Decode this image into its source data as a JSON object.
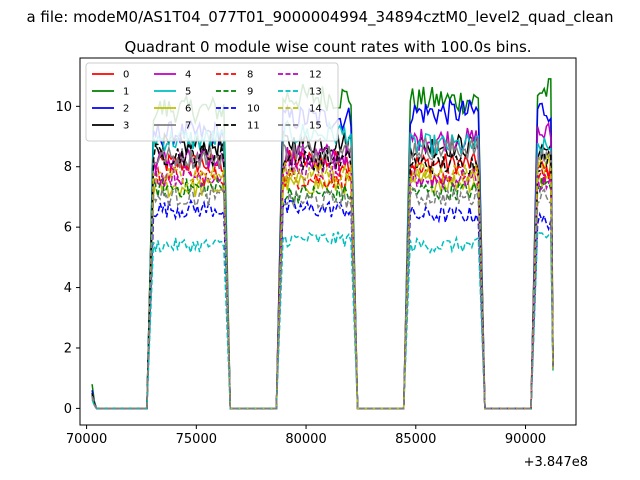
{
  "chart_data": {
    "type": "line",
    "suptitle": "a file: modeM0/AS1T04_077T01_9000004994_34894cztM0_level2_quad_clean",
    "title": "Quadrant 0 module wise count rates with 100.0s bins.",
    "xlabel": "",
    "ylabel": "",
    "x_offset_label": "+3.847e8",
    "xlim": [
      69700,
      92300
    ],
    "ylim": [
      -0.55,
      11.6
    ],
    "xticks": [
      70000,
      75000,
      80000,
      85000,
      90000
    ],
    "xtick_labels": [
      "70000",
      "75000",
      "80000",
      "85000",
      "90000"
    ],
    "yticks": [
      0,
      2,
      4,
      6,
      8,
      10
    ],
    "ytick_labels": [
      "0",
      "2",
      "4",
      "6",
      "8",
      "10"
    ],
    "legend_position": "top-left",
    "observation_windows": [
      {
        "rise_start": 72750,
        "plateau_start": 73050,
        "plateau_end": 76250,
        "fall_end": 76550
      },
      {
        "rise_start": 78650,
        "plateau_start": 78950,
        "plateau_end": 82050,
        "fall_end": 82350
      },
      {
        "rise_start": 84450,
        "plateau_start": 84750,
        "plateau_end": 87850,
        "fall_end": 88150
      },
      {
        "rise_start": 90250,
        "plateau_start": 90550,
        "plateau_end": 91150,
        "fall_end": 91250
      }
    ],
    "series": [
      {
        "name": "0",
        "color": "#ff0000",
        "dash": "solid",
        "levels": [
          8.1,
          8.2,
          8.1,
          7.9
        ],
        "start": 0.5,
        "end": 1.4
      },
      {
        "name": "1",
        "color": "#008000",
        "dash": "solid",
        "levels": [
          9.9,
          10.3,
          10.2,
          10.5
        ],
        "start": 0.8,
        "end": 1.7
      },
      {
        "name": "2",
        "color": "#0000ff",
        "dash": "solid",
        "levels": [
          9.1,
          9.6,
          9.8,
          9.9
        ],
        "start": 0.6,
        "end": 1.6
      },
      {
        "name": "3",
        "color": "#000000",
        "dash": "solid",
        "levels": [
          8.7,
          8.8,
          8.7,
          8.6
        ],
        "start": 0.5,
        "end": 1.5
      },
      {
        "name": "4",
        "color": "#bf00bf",
        "dash": "solid",
        "levels": [
          8.2,
          8.4,
          8.9,
          9.1
        ],
        "start": 0.5,
        "end": 1.5
      },
      {
        "name": "5",
        "color": "#00bfbf",
        "dash": "solid",
        "levels": [
          8.9,
          9.1,
          8.7,
          8.6
        ],
        "start": 0.5,
        "end": 1.5
      },
      {
        "name": "6",
        "color": "#bfbf00",
        "dash": "solid",
        "levels": [
          7.3,
          7.4,
          7.5,
          7.6
        ],
        "start": 0.4,
        "end": 1.3
      },
      {
        "name": "7",
        "color": "#808080",
        "dash": "solid",
        "levels": [
          8.3,
          8.5,
          8.6,
          8.4
        ],
        "start": 0.5,
        "end": 1.4
      },
      {
        "name": "8",
        "color": "#ff0000",
        "dash": "dashed",
        "levels": [
          7.7,
          7.6,
          7.7,
          7.8
        ],
        "start": 0.4,
        "end": 1.3
      },
      {
        "name": "9",
        "color": "#008000",
        "dash": "dashed",
        "levels": [
          7.3,
          7.1,
          7.2,
          7.4
        ],
        "start": 0.4,
        "end": 1.3
      },
      {
        "name": "10",
        "color": "#0000ff",
        "dash": "dashed",
        "levels": [
          6.6,
          6.6,
          6.4,
          6.2
        ],
        "start": 0.4,
        "end": 1.3
      },
      {
        "name": "11",
        "color": "#000000",
        "dash": "dashed",
        "levels": [
          8.4,
          8.2,
          8.1,
          8.2
        ],
        "start": 0.5,
        "end": 1.4
      },
      {
        "name": "12",
        "color": "#bf00bf",
        "dash": "dashed",
        "levels": [
          7.7,
          7.9,
          7.6,
          7.5
        ],
        "start": 0.4,
        "end": 1.3
      },
      {
        "name": "13",
        "color": "#00bfbf",
        "dash": "dashed",
        "levels": [
          5.4,
          5.6,
          5.4,
          5.7
        ],
        "start": 0.3,
        "end": 1.2
      },
      {
        "name": "14",
        "color": "#bfbf00",
        "dash": "dashed",
        "levels": [
          7.7,
          7.8,
          7.8,
          8.1
        ],
        "start": 0.4,
        "end": 1.3
      },
      {
        "name": "15",
        "color": "#808080",
        "dash": "dashed",
        "levels": [
          7.0,
          6.9,
          7.0,
          7.1
        ],
        "start": 0.4,
        "end": 1.3
      }
    ]
  }
}
